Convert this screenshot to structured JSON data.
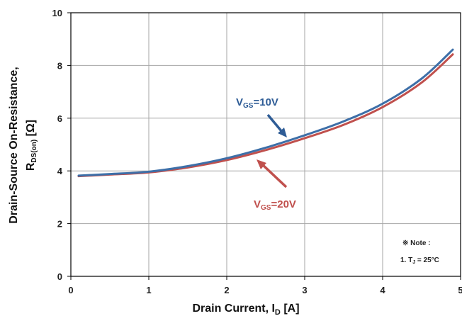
{
  "chart_data": {
    "type": "line",
    "title": "",
    "xlabel": "Drain Current, I",
    "xlabel_sub": "D",
    "xlabel_unit": " [A]",
    "ylabel_line1": "Drain-Source On-Resistance,",
    "ylabel_line2_main": "R",
    "ylabel_line2_sub": "DS(on)",
    "ylabel_line2_unit": " [Ω]",
    "xlim": [
      0,
      5
    ],
    "ylim": [
      0,
      10
    ],
    "xticks": [
      "0",
      "1",
      "2",
      "3",
      "4",
      "5"
    ],
    "yticks": [
      "0",
      "2",
      "4",
      "6",
      "8",
      "10"
    ],
    "grid": true,
    "series": [
      {
        "name": "VGS=10V",
        "color": "#3d6fa8",
        "x": [
          0.1,
          0.5,
          1.0,
          1.5,
          2.0,
          2.5,
          3.0,
          3.5,
          4.0,
          4.5,
          4.9
        ],
        "y": [
          3.82,
          3.88,
          3.97,
          4.18,
          4.48,
          4.88,
          5.35,
          5.88,
          6.55,
          7.5,
          8.6
        ]
      },
      {
        "name": "VGS=20V",
        "color": "#c0504d",
        "x": [
          0.1,
          0.5,
          1.0,
          1.5,
          2.0,
          2.5,
          3.0,
          3.5,
          4.0,
          4.5,
          4.9
        ],
        "y": [
          3.8,
          3.86,
          3.94,
          4.13,
          4.41,
          4.79,
          5.24,
          5.75,
          6.42,
          7.35,
          8.42
        ]
      }
    ],
    "annotations": [
      {
        "main": "V",
        "sub": "GS",
        "rest": "=10V",
        "color": "#2e5c96"
      },
      {
        "main": "V",
        "sub": "GS",
        "rest": "=20V",
        "color": "#c0504d"
      }
    ],
    "note": {
      "title": "※ Note :",
      "line_prefix": "1. T",
      "line_sub": "J",
      "line_rest": " = 25°C"
    }
  }
}
